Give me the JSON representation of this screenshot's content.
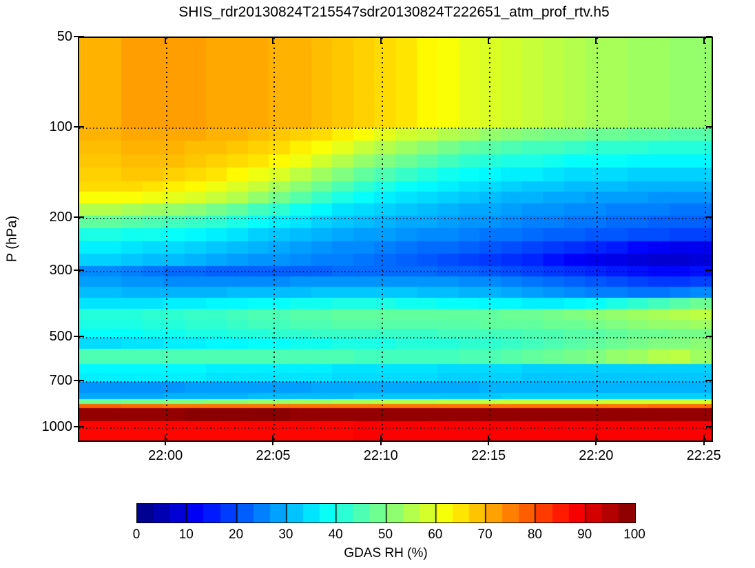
{
  "title": "SHIS_rdr20130824T215547sdr20130824T222651_atm_prof_rtv.h5",
  "chart_data": {
    "type": "heatmap",
    "title": "SHIS_rdr20130824T215547sdr20130824T222651_atm_prof_rtv.h5",
    "ylabel": "P (hPa)",
    "xlabel": "",
    "colorbar_label": "GDAS RH (%)",
    "colormap": "jet",
    "value_range": [
      0,
      100
    ],
    "grid": "dotted",
    "y_scale": "log",
    "y_ticks": [
      50,
      100,
      200,
      300,
      500,
      700,
      1000
    ],
    "y_range_hpa": [
      50,
      1100
    ],
    "x_tick_labels": [
      "22:00",
      "22:05",
      "22:10",
      "22:15",
      "22:20",
      "22:25"
    ],
    "x_tick_minutes": [
      0,
      5,
      10,
      15,
      20,
      25
    ],
    "x_range_minutes_rel_2200": [
      -4.07,
      25.3
    ],
    "colorbar_tick_labels": [
      "0",
      "10",
      "20",
      "30",
      "40",
      "50",
      "60",
      "70",
      "80",
      "90",
      "100"
    ],
    "colorbar_tick_values": [
      0,
      10,
      20,
      30,
      40,
      50,
      60,
      70,
      80,
      90,
      100
    ],
    "colorbar_segments": 30,
    "time_columns": 30,
    "pressure_edges_hpa": [
      50,
      100,
      110,
      122,
      135,
      150,
      163,
      178,
      196,
      216,
      238,
      262,
      288,
      312,
      338,
      368,
      400,
      435,
      466,
      500,
      545,
      610,
      655,
      700,
      762,
      800,
      832,
      858,
      948,
      1100
    ],
    "rh_values": [
      [
        70,
        70,
        72,
        72,
        72,
        72,
        71,
        71,
        71,
        70,
        70,
        69,
        68,
        67,
        66,
        65,
        63,
        62,
        60,
        59,
        58,
        57,
        56,
        55,
        54,
        54,
        53,
        53,
        52,
        52
      ],
      [
        70,
        70,
        71,
        71,
        71,
        71,
        70,
        70,
        69,
        68,
        67,
        66,
        64,
        62,
        60,
        58,
        57,
        55,
        54,
        52,
        51,
        50,
        49,
        49,
        48,
        48,
        47,
        47,
        46,
        46
      ],
      [
        69,
        69,
        70,
        70,
        70,
        69,
        69,
        68,
        67,
        66,
        64,
        62,
        60,
        57,
        55,
        53,
        51,
        49,
        47,
        46,
        45,
        44,
        44,
        43,
        42,
        42,
        42,
        41,
        41,
        41
      ],
      [
        68,
        68,
        69,
        69,
        69,
        68,
        67,
        66,
        65,
        63,
        61,
        58,
        55,
        52,
        50,
        48,
        46,
        44,
        42,
        41,
        40,
        40,
        39,
        38,
        38,
        38,
        37,
        37,
        37,
        37
      ],
      [
        67,
        67,
        68,
        68,
        67,
        66,
        65,
        63,
        61,
        59,
        56,
        53,
        50,
        47,
        45,
        43,
        41,
        39,
        38,
        37,
        36,
        36,
        35,
        34,
        34,
        34,
        33,
        33,
        33,
        33
      ],
      [
        66,
        66,
        66,
        65,
        64,
        63,
        61,
        59,
        57,
        54,
        51,
        48,
        45,
        42,
        40,
        38,
        37,
        36,
        35,
        34,
        33,
        32,
        32,
        31,
        31,
        31,
        30,
        30,
        30,
        30
      ],
      [
        62,
        62,
        62,
        61,
        60,
        59,
        57,
        55,
        52,
        49,
        46,
        43,
        40,
        38,
        36,
        35,
        34,
        33,
        32,
        31,
        30,
        30,
        29,
        29,
        28,
        28,
        28,
        27,
        27,
        27
      ],
      [
        55,
        55,
        54,
        53,
        52,
        51,
        49,
        47,
        44,
        42,
        39,
        37,
        35,
        34,
        33,
        32,
        31,
        30,
        29,
        29,
        28,
        27,
        27,
        26,
        26,
        25,
        25,
        25,
        24,
        24
      ],
      [
        47,
        47,
        46,
        45,
        44,
        43,
        42,
        40,
        38,
        36,
        35,
        33,
        32,
        31,
        30,
        29,
        29,
        28,
        27,
        27,
        26,
        25,
        25,
        24,
        24,
        23,
        23,
        22,
        22,
        22
      ],
      [
        40,
        40,
        39,
        39,
        38,
        37,
        36,
        35,
        33,
        32,
        31,
        30,
        29,
        28,
        28,
        27,
        26,
        26,
        25,
        24,
        24,
        23,
        22,
        22,
        21,
        21,
        20,
        20,
        19,
        19
      ],
      [
        36,
        36,
        35,
        34,
        34,
        33,
        32,
        31,
        30,
        29,
        28,
        27,
        26,
        26,
        25,
        24,
        23,
        23,
        22,
        21,
        20,
        19,
        18,
        17,
        16,
        15,
        13,
        12,
        11,
        11
      ],
      [
        33,
        33,
        32,
        31,
        31,
        30,
        29,
        28,
        27,
        27,
        26,
        25,
        25,
        24,
        23,
        22,
        21,
        20,
        19,
        18,
        17,
        16,
        14,
        12,
        11,
        10,
        9,
        8,
        8,
        9
      ],
      [
        26,
        26,
        25,
        24,
        23,
        23,
        22,
        22,
        22,
        22,
        22,
        22,
        23,
        23,
        23,
        23,
        23,
        22,
        22,
        21,
        20,
        19,
        18,
        17,
        16,
        15,
        14,
        13,
        13,
        14
      ],
      [
        28,
        28,
        27,
        27,
        26,
        26,
        26,
        26,
        26,
        26,
        27,
        27,
        27,
        27,
        27,
        27,
        27,
        27,
        26,
        26,
        25,
        24,
        23,
        22,
        21,
        20,
        19,
        18,
        18,
        19
      ],
      [
        31,
        31,
        30,
        30,
        30,
        30,
        30,
        31,
        31,
        31,
        31,
        32,
        32,
        32,
        32,
        32,
        31,
        31,
        30,
        30,
        29,
        28,
        27,
        26,
        25,
        25,
        24,
        24,
        25,
        26
      ],
      [
        35,
        35,
        35,
        35,
        36,
        36,
        37,
        37,
        38,
        38,
        39,
        39,
        40,
        40,
        40,
        39,
        39,
        38,
        38,
        37,
        37,
        36,
        36,
        37,
        38,
        40,
        42,
        44,
        46,
        48
      ],
      [
        41,
        41,
        41,
        42,
        42,
        43,
        43,
        44,
        45,
        45,
        46,
        46,
        47,
        47,
        47,
        47,
        47,
        47,
        47,
        47,
        48,
        48,
        49,
        50,
        51,
        52,
        53,
        54,
        55,
        56
      ],
      [
        40,
        40,
        40,
        41,
        41,
        42,
        42,
        43,
        44,
        44,
        45,
        45,
        46,
        46,
        46,
        46,
        46,
        46,
        46,
        47,
        47,
        47,
        48,
        48,
        49,
        50,
        51,
        52,
        52,
        53
      ],
      [
        38,
        38,
        38,
        39,
        39,
        40,
        40,
        41,
        41,
        42,
        42,
        43,
        43,
        43,
        43,
        43,
        43,
        44,
        44,
        44,
        44,
        45,
        45,
        46,
        46,
        47,
        48,
        48,
        49,
        49
      ],
      [
        34,
        34,
        35,
        35,
        36,
        36,
        37,
        37,
        38,
        38,
        39,
        39,
        40,
        40,
        40,
        41,
        41,
        41,
        42,
        42,
        43,
        44,
        45,
        46,
        47,
        48,
        49,
        50,
        50,
        51
      ],
      [
        45,
        45,
        45,
        45,
        45,
        45,
        45,
        45,
        45,
        45,
        45,
        45,
        45,
        44,
        44,
        44,
        44,
        44,
        45,
        45,
        46,
        47,
        48,
        49,
        50,
        52,
        53,
        55,
        56,
        53
      ],
      [
        37,
        37,
        37,
        37,
        37,
        37,
        36,
        36,
        36,
        36,
        36,
        36,
        35,
        35,
        35,
        35,
        35,
        34,
        34,
        34,
        34,
        33,
        33,
        33,
        33,
        33,
        33,
        33,
        33,
        33
      ],
      [
        36,
        36,
        36,
        36,
        36,
        36,
        35,
        35,
        35,
        35,
        35,
        35,
        34,
        34,
        34,
        34,
        34,
        33,
        33,
        33,
        33,
        32,
        32,
        32,
        32,
        32,
        32,
        32,
        32,
        32
      ],
      [
        27,
        27,
        27,
        27,
        27,
        28,
        28,
        28,
        28,
        28,
        28,
        29,
        29,
        29,
        29,
        29,
        29,
        29,
        29,
        30,
        30,
        30,
        30,
        30,
        30,
        30,
        30,
        30,
        30,
        30
      ],
      [
        29,
        29,
        29,
        29,
        30,
        30,
        30,
        30,
        31,
        31,
        31,
        31,
        31,
        32,
        32,
        32,
        32,
        32,
        32,
        32,
        33,
        33,
        33,
        33,
        33,
        33,
        33,
        33,
        33,
        33
      ],
      [
        48,
        48,
        49,
        49,
        50,
        50,
        51,
        51,
        52,
        52,
        53,
        53,
        54,
        54,
        55,
        55,
        55,
        56,
        56,
        56,
        57,
        57,
        57,
        57,
        57,
        58,
        58,
        58,
        58,
        58
      ],
      [
        78,
        78,
        77,
        77,
        76,
        76,
        76,
        76,
        76,
        76,
        76,
        76,
        76,
        76,
        76,
        76,
        76,
        76,
        76,
        76,
        76,
        76,
        76,
        76,
        76,
        76,
        76,
        77,
        77,
        77
      ],
      [
        98,
        98,
        98,
        98,
        98,
        99,
        99,
        99,
        99,
        99,
        98,
        98,
        98,
        98,
        98,
        98,
        98,
        98,
        98,
        98,
        98,
        98,
        98,
        98,
        98,
        98,
        98,
        98,
        98,
        98
      ],
      [
        87,
        87,
        87,
        87,
        87,
        87,
        87,
        87,
        87,
        87,
        87,
        87,
        87,
        88,
        88,
        88,
        88,
        88,
        88,
        88,
        88,
        88,
        88,
        88,
        88,
        88,
        88,
        88,
        88,
        88
      ]
    ]
  }
}
